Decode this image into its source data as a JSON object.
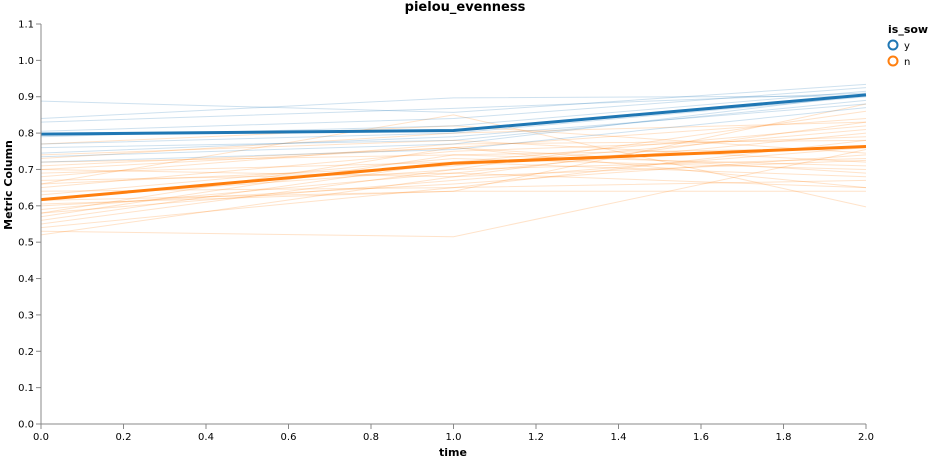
{
  "chart_data": {
    "type": "line",
    "title": "pielou_evenness",
    "xlabel": "time",
    "ylabel": "Metric Column",
    "xlim": [
      0,
      2
    ],
    "ylim": [
      0,
      1.1
    ],
    "x_ticks": [
      "0.0",
      "0.2",
      "0.4",
      "0.6",
      "0.8",
      "1.0",
      "1.2",
      "1.4",
      "1.6",
      "1.8",
      "2.0"
    ],
    "y_ticks": [
      "0.0",
      "0.1",
      "0.2",
      "0.3",
      "0.4",
      "0.5",
      "0.6",
      "0.7",
      "0.8",
      "0.9",
      "1.0",
      "1.1"
    ],
    "grid": false,
    "legend": {
      "title": "is_sow",
      "position": "top-right",
      "entries": [
        {
          "label": "y",
          "color": "#1f77b4"
        },
        {
          "label": "n",
          "color": "#ff7f0e"
        }
      ]
    },
    "mean_series": [
      {
        "name": "y",
        "color": "#1f77b4",
        "x": [
          0,
          1,
          2
        ],
        "y": [
          0.797,
          0.807,
          0.905
        ]
      },
      {
        "name": "n",
        "color": "#ff7f0e",
        "x": [
          0,
          1,
          2
        ],
        "y": [
          0.617,
          0.717,
          0.763
        ]
      }
    ],
    "individual_series": {
      "y": [
        [
          0.888,
          0.857,
          0.934
        ],
        [
          0.84,
          0.897,
          0.902
        ],
        [
          0.83,
          0.868,
          0.91
        ],
        [
          0.805,
          0.84,
          0.925
        ],
        [
          0.79,
          0.82,
          0.915
        ],
        [
          0.77,
          0.8,
          0.9
        ],
        [
          0.76,
          0.78,
          0.89
        ],
        [
          0.745,
          0.79,
          0.88
        ],
        [
          0.735,
          0.77,
          0.905
        ],
        [
          0.72,
          0.755,
          0.87
        ]
      ],
      "n": [
        [
          0.53,
          0.515,
          0.755
        ],
        [
          0.52,
          0.68,
          0.83
        ],
        [
          0.54,
          0.65,
          0.78
        ],
        [
          0.55,
          0.7,
          0.73
        ],
        [
          0.56,
          0.72,
          0.82
        ],
        [
          0.57,
          0.74,
          0.76
        ],
        [
          0.58,
          0.76,
          0.69
        ],
        [
          0.59,
          0.69,
          0.8
        ],
        [
          0.6,
          0.66,
          0.74
        ],
        [
          0.605,
          0.64,
          0.64
        ],
        [
          0.62,
          0.7,
          0.86
        ],
        [
          0.63,
          0.73,
          0.7
        ],
        [
          0.64,
          0.65,
          0.67
        ],
        [
          0.65,
          0.75,
          0.79
        ],
        [
          0.66,
          0.71,
          0.81
        ],
        [
          0.67,
          0.69,
          0.65
        ],
        [
          0.68,
          0.77,
          0.78
        ],
        [
          0.69,
          0.72,
          0.68
        ],
        [
          0.7,
          0.68,
          0.725
        ],
        [
          0.71,
          0.76,
          0.84
        ],
        [
          0.72,
          0.74,
          0.71
        ],
        [
          0.73,
          0.8,
          0.83
        ],
        [
          0.74,
          0.78,
          0.72
        ],
        [
          0.77,
          0.82,
          0.745
        ],
        [
          0.66,
          0.85,
          0.597
        ],
        [
          0.615,
          0.64,
          0.88
        ],
        [
          0.58,
          0.67,
          0.76
        ],
        [
          0.7,
          0.76,
          0.65
        ]
      ]
    }
  }
}
